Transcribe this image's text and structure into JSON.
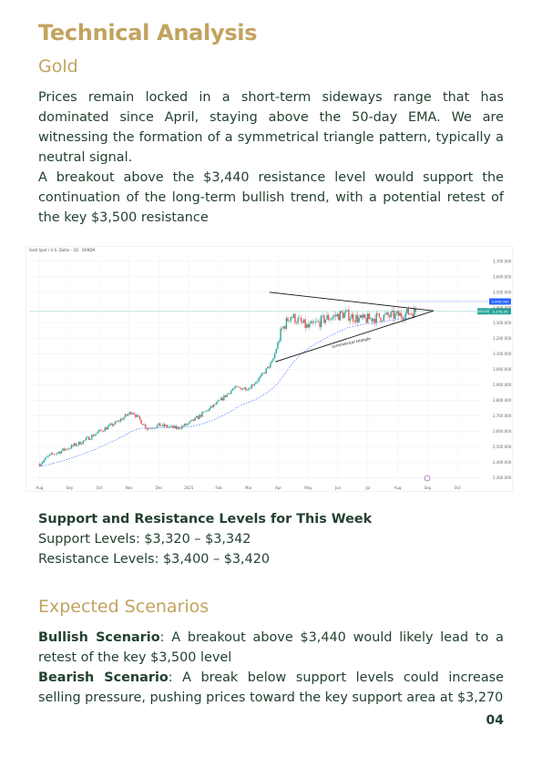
{
  "title": "Technical Analysis",
  "subtitle": "Gold",
  "paragraphs": {
    "p1": "Prices remain locked in a short-term sideways range that has dominated since April, staying above the 50-day EMA. We are witnessing the formation of a symmetrical triangle pattern, typically a neutral signal.",
    "p2": "A breakout above the $3,440 resistance level would support the continuation of the long-term bullish trend, with a potential retest of the key $3,500 resistance"
  },
  "support_resistance": {
    "heading": "Support and Resistance Levels for This Week",
    "support": "Support Levels: $3,320 – $3,342",
    "resistance": "Resistance Levels: $3,400 – $3,420"
  },
  "scenarios": {
    "heading": "Expected Scenarios",
    "bullish_label": "Bullish Scenario",
    "bullish_text": ": A breakout above $3,440 would likely lead to a retest of the key $3,500 level",
    "bearish_label": "Bearish Scenario",
    "bearish_text": ": A break below support levels could increase selling pressure, pushing prices toward the key support area at $3,270"
  },
  "page_number": "04",
  "colors": {
    "heading": "#c2a35f",
    "text": "#23412f",
    "candle_up": "#26a69a",
    "candle_down": "#ef5350",
    "ema": "#2962ff",
    "price_tag": "#26a69a",
    "alert_tag": "#2962ff"
  },
  "chart_data": {
    "type": "candlestick",
    "symbol_label": "Gold Spot / U.S. Dollar · 1D · OANDA",
    "annotation": "symmetrical triangle",
    "x_labels": [
      "Aug",
      "Sep",
      "Oct",
      "Nov",
      "Dec",
      "2025",
      "Feb",
      "Mar",
      "Apr",
      "May",
      "Jun",
      "Jul",
      "Aug",
      "Sep",
      "Oct"
    ],
    "y_ticks": [
      2300,
      2400,
      2500,
      2600,
      2700,
      2800,
      2900,
      3000,
      3100,
      3200,
      3300,
      3400,
      3500,
      3600,
      3700
    ],
    "ylim": [
      2280,
      3740
    ],
    "last_price": 3376.35,
    "last_price_label": "3,376.35",
    "last_price_tag": "XAUUSD",
    "alert_level": 3440,
    "alert_label": "3,440.000",
    "ema_label": "EMA 50",
    "triangle_upper": [
      [
        "Apr",
        3500
      ],
      [
        "Aug",
        3440
      ]
    ],
    "triangle_lower": [
      [
        "Apr",
        3050
      ],
      [
        "Aug",
        3320
      ]
    ]
  }
}
